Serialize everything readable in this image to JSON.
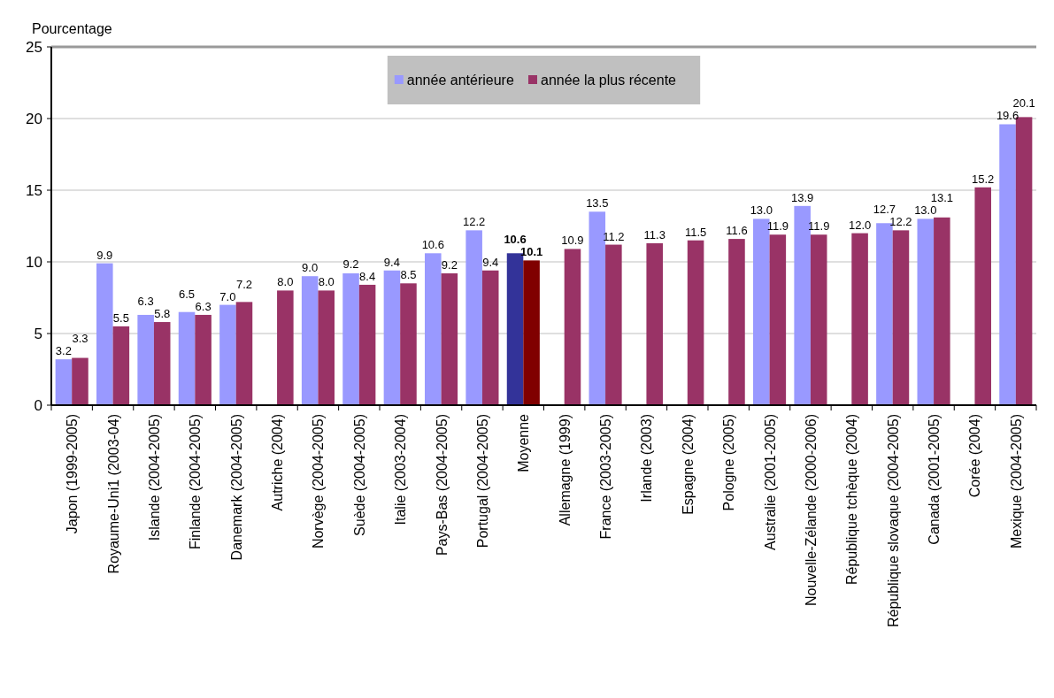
{
  "chart_data": {
    "type": "bar",
    "ylabel": "Pourcentage",
    "categories": [
      "Japon (1999-2005)",
      "Royaume-Uni1 (2003-04)",
      "Islande (2004-2005)",
      "Finlande (2004-2005)",
      "Danemark (2004-2005)",
      "Autriche (2004)",
      "Norvège (2004-2005)",
      "Suède (2004-2005)",
      "Italie (2003-2004)",
      "Pays-Bas (2004-2005)",
      "Portugal (2004-2005)",
      "Moyenne",
      "Allemagne (1999)",
      "France (2003-2005)",
      "Irlande (2003)",
      "Espagne (2004)",
      "Pologne (2005)",
      "Australie (2001-2005)",
      "Nouvelle-Zélande (2000-2006)",
      "République tchèque (2004)",
      "République slovaque (2004-2005)",
      "Canada (2001-2005)",
      "Corée (2004)",
      "Mexique (2004-2005)"
    ],
    "series": [
      {
        "name": "année antérieure",
        "color": "#9999ff",
        "colors": [
          "#9999ff",
          "#9999ff",
          "#9999ff",
          "#9999ff",
          "#9999ff",
          null,
          "#9999ff",
          "#9999ff",
          "#9999ff",
          "#9999ff",
          "#9999ff",
          "#333399",
          null,
          "#9999ff",
          null,
          null,
          null,
          "#9999ff",
          "#9999ff",
          null,
          "#9999ff",
          "#9999ff",
          null,
          "#9999ff"
        ],
        "values": [
          3.2,
          9.9,
          6.3,
          6.5,
          7.0,
          null,
          9.0,
          9.2,
          9.4,
          10.6,
          12.2,
          10.6,
          null,
          13.5,
          null,
          null,
          null,
          13.0,
          13.9,
          null,
          12.7,
          13.0,
          null,
          19.6
        ],
        "value_labels": [
          "3.2",
          "9.9",
          "6.3",
          "6.5",
          "7.0",
          null,
          "9.0",
          "9.2",
          "9.4",
          "10.6",
          "12.2",
          "10.6",
          null,
          "13.5",
          null,
          null,
          null,
          "13.0",
          "13.9",
          null,
          "12.7",
          "13.0",
          null,
          "19.6"
        ]
      },
      {
        "name": "année la plus récente",
        "color": "#993366",
        "colors": [
          "#993366",
          "#993366",
          "#993366",
          "#993366",
          "#993366",
          "#993366",
          "#993366",
          "#993366",
          "#993366",
          "#993366",
          "#993366",
          "#800000",
          "#993366",
          "#993366",
          "#993366",
          "#993366",
          "#993366",
          "#993366",
          "#993366",
          "#993366",
          "#993366",
          "#993366",
          "#993366",
          "#993366"
        ],
        "values": [
          3.3,
          5.5,
          5.8,
          6.3,
          7.2,
          8.0,
          8.0,
          8.4,
          8.5,
          9.2,
          9.4,
          10.1,
          10.9,
          11.2,
          11.3,
          11.5,
          11.6,
          11.9,
          11.9,
          12.0,
          12.2,
          13.1,
          15.2,
          20.1
        ],
        "value_labels": [
          "3.3",
          "5.5",
          "5.8",
          "6.3",
          "7.2",
          "8.0",
          "8.0",
          "8.4",
          "8.5",
          "9.2",
          "9.4",
          "10.1",
          "10.9",
          "11.2",
          "11.3",
          "11.5",
          "11.6",
          "11.9",
          "11.9",
          "12.0",
          "12.2",
          "13.1",
          "15.2",
          "20.1"
        ]
      }
    ],
    "ylim": [
      0,
      25
    ],
    "yticks": [
      0,
      5,
      10,
      15,
      20,
      25
    ],
    "grid": "y",
    "legend": "top"
  }
}
